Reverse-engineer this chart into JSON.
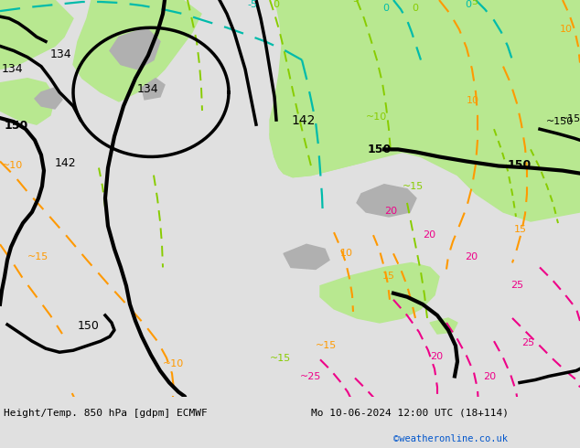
{
  "title_left": "Height/Temp. 850 hPa [gdpm] ECMWF",
  "title_right": "Mo 10-06-2024 12:00 UTC (18+114)",
  "credit": "©weatheronline.co.uk",
  "bg_ocean": "#d8d8d8",
  "bg_land_green": "#b8e890",
  "bg_land_light_green": "#c8f0a0",
  "bg_gray": "#b0b0b0",
  "text_color": "#000000",
  "credit_color": "#0055cc",
  "bottom_bar_color": "#e0e0e0",
  "black_lw": 2.5,
  "green_lw": 1.4,
  "cyan_lw": 1.6,
  "orange_lw": 1.5,
  "magenta_lw": 1.5,
  "figsize": [
    6.34,
    4.9
  ],
  "dpi": 100
}
